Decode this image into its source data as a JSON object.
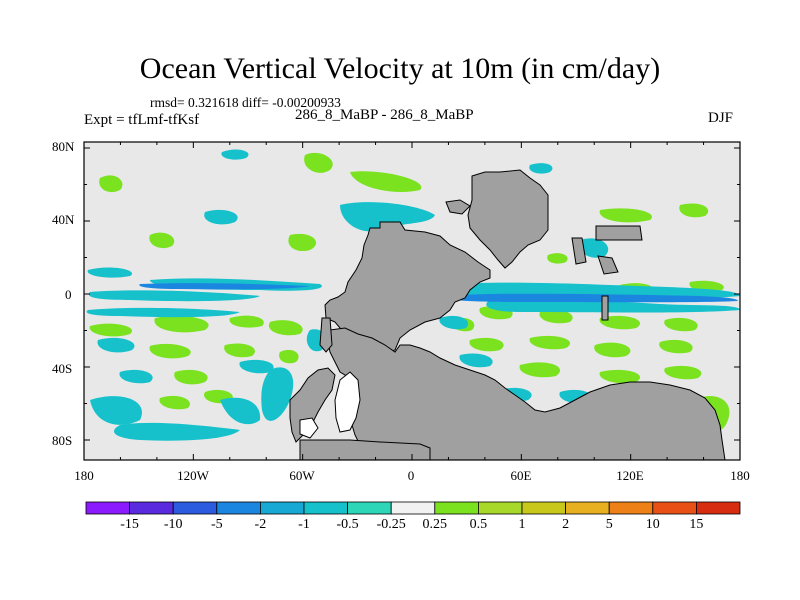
{
  "title": "Ocean Vertical Velocity at 10m (in cm/day)",
  "stats": "rmsd= 0.321618  diff= -0.00200933",
  "expt": "Expt = tfLmf-tfKsf",
  "case_label": "286_8_MaBP - 286_8_MaBP",
  "season": "DJF",
  "map": {
    "lon_labels": [
      "180",
      "120W",
      "60W",
      "0",
      "60E",
      "120E",
      "180"
    ],
    "lat_labels": [
      "80N",
      "40N",
      "0",
      "40S",
      "80S"
    ],
    "land_color": "#a0a0a0",
    "ocean_background": "#e8e8e8"
  },
  "colorbar": {
    "labels": [
      "-15",
      "-10",
      "-5",
      "-2",
      "-1",
      "-0.5",
      "-0.25",
      "0.25",
      "0.5",
      "1",
      "2",
      "5",
      "10",
      "15"
    ],
    "colors": [
      "#8c1aff",
      "#5a2bde",
      "#2d5be0",
      "#1a86e0",
      "#17a8d4",
      "#16c1cc",
      "#2ed6b8",
      "#f2f2f2",
      "#7be21f",
      "#a8d82a",
      "#c8c81a",
      "#e6b020",
      "#ee8018",
      "#e85016",
      "#d82c10"
    ]
  }
}
